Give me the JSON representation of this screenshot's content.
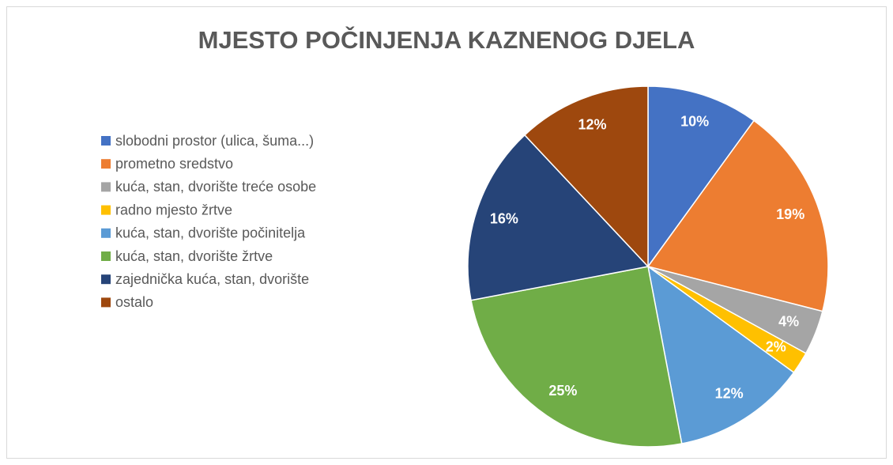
{
  "chart_data": {
    "type": "pie",
    "title": "MJESTO POČINJENJA KAZNENOG DJELA",
    "categories": [
      "slobodni prostor (ulica, šuma...)",
      "prometno sredstvo",
      "kuća, stan, dvorište treće osobe",
      "radno mjesto žrtve",
      "kuća, stan, dvorište počinitelja",
      "kuća, stan, dvorište žrtve",
      "zajednička kuća, stan, dvorište",
      "ostalo"
    ],
    "values": [
      10,
      19,
      4,
      2,
      12,
      25,
      16,
      12
    ],
    "value_labels": [
      "10%",
      "19%",
      "4%",
      "2%",
      "12%",
      "25%",
      "16%",
      "12%"
    ],
    "colors": [
      "#4472c4",
      "#ed7d31",
      "#a5a5a5",
      "#ffc000",
      "#5b9bd5",
      "#70ad47",
      "#264478",
      "#9e480e"
    ],
    "legend": "left"
  }
}
